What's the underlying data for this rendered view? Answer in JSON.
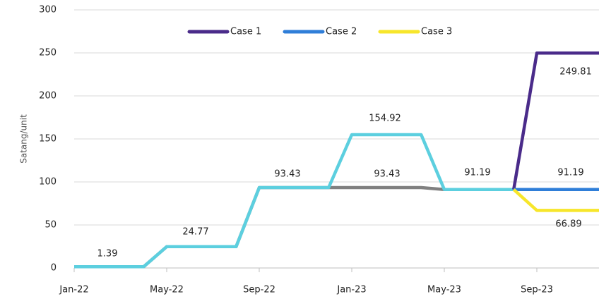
{
  "chart_data": {
    "type": "line",
    "y_label": "Satang/unit",
    "categories": [
      "Jan-22",
      null,
      null,
      null,
      "May-22",
      null,
      null,
      null,
      "Sep-22",
      null,
      null,
      null,
      "Jan-23",
      null,
      null,
      null,
      "May-23",
      null,
      null,
      null,
      "Sep-23",
      null,
      null,
      null
    ],
    "series": [
      {
        "color": "#808080",
        "values": [
          1.39,
          1.39,
          1.39,
          1.39,
          24.77,
          24.77,
          24.77,
          24.77,
          93.43,
          93.43,
          93.43,
          93.43,
          93.43,
          93.43,
          93.43,
          93.43,
          91.19,
          91.19,
          91.19,
          91.19,
          null,
          null,
          null,
          null
        ]
      },
      {
        "color": "#5ccfdf",
        "values": [
          1.39,
          1.39,
          1.39,
          1.39,
          24.77,
          24.77,
          24.77,
          24.77,
          93.43,
          93.43,
          93.43,
          93.43,
          154.92,
          154.92,
          154.92,
          154.92,
          91.19,
          91.19,
          91.19,
          91.19,
          null,
          null,
          null,
          null
        ]
      },
      {
        "name": "Case 1",
        "color": "#4a2b8a",
        "values": [
          null,
          null,
          null,
          null,
          null,
          null,
          null,
          null,
          null,
          null,
          null,
          null,
          null,
          null,
          null,
          null,
          null,
          null,
          null,
          91.19,
          249.81,
          249.81,
          249.81,
          249.81
        ]
      },
      {
        "name": "Case 2",
        "color": "#2f7ed8",
        "values": [
          null,
          null,
          null,
          null,
          null,
          null,
          null,
          null,
          null,
          null,
          null,
          null,
          null,
          null,
          null,
          null,
          null,
          null,
          null,
          91.19,
          91.19,
          91.19,
          91.19,
          91.19
        ]
      },
      {
        "name": "Case 3",
        "color": "#f7e62b",
        "values": [
          null,
          null,
          null,
          null,
          null,
          null,
          null,
          null,
          null,
          null,
          null,
          null,
          null,
          null,
          null,
          null,
          null,
          null,
          null,
          91.19,
          66.89,
          66.89,
          66.89,
          66.89
        ]
      }
    ],
    "ylim": [
      0,
      300
    ],
    "yticks": [
      0,
      50,
      100,
      150,
      200,
      250,
      300
    ],
    "grid": true
  }
}
